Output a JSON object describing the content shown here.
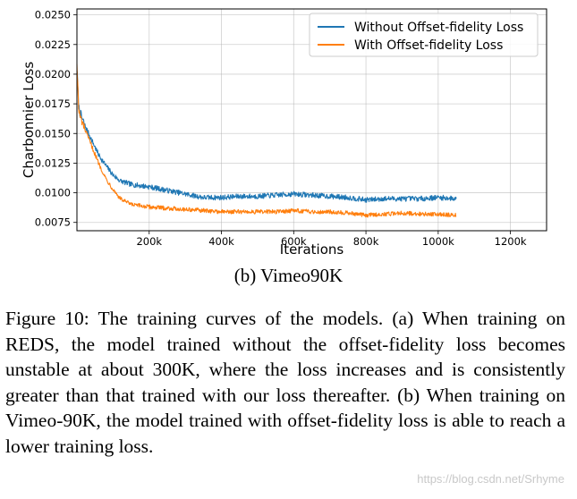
{
  "chart_data": {
    "type": "line",
    "title": "",
    "xlabel": "Iterations",
    "ylabel": "Charbonnier Loss",
    "xlim": [
      0,
      1300000
    ],
    "ylim": [
      0.0068,
      0.0255
    ],
    "xticks": [
      200000,
      400000,
      600000,
      800000,
      1000000,
      1200000
    ],
    "xtick_labels": [
      "200k",
      "400k",
      "600k",
      "800k",
      "1000k",
      "1200k"
    ],
    "yticks": [
      0.0075,
      0.01,
      0.0125,
      0.015,
      0.0175,
      0.02,
      0.0225,
      0.025
    ],
    "ytick_labels": [
      "0.0075",
      "0.0100",
      "0.0125",
      "0.0150",
      "0.0175",
      "0.0200",
      "0.0225",
      "0.0250"
    ],
    "legend_position": "top-right",
    "grid": true,
    "series": [
      {
        "name": "Without Offset-fidelity Loss",
        "color": "#1f77b4",
        "noise": 0.00022,
        "x": [
          0,
          5000,
          10000,
          20000,
          40000,
          60000,
          80000,
          100000,
          120000,
          150000,
          200000,
          250000,
          300000,
          350000,
          400000,
          450000,
          500000,
          550000,
          600000,
          650000,
          700000,
          750000,
          800000,
          850000,
          900000,
          950000,
          1000000,
          1050000
        ],
        "y": [
          0.0205,
          0.0172,
          0.0166,
          0.0158,
          0.0145,
          0.0132,
          0.0123,
          0.0115,
          0.011,
          0.0107,
          0.0105,
          0.0102,
          0.0099,
          0.0096,
          0.0096,
          0.0097,
          0.0097,
          0.0098,
          0.0099,
          0.0098,
          0.0097,
          0.0096,
          0.0094,
          0.0095,
          0.0095,
          0.0095,
          0.0096,
          0.0095
        ]
      },
      {
        "name": "With Offset-fidelity Loss",
        "color": "#ff7f0e",
        "noise": 0.00018,
        "x": [
          0,
          5000,
          10000,
          20000,
          40000,
          60000,
          80000,
          100000,
          120000,
          150000,
          200000,
          250000,
          300000,
          350000,
          400000,
          450000,
          500000,
          550000,
          600000,
          650000,
          700000,
          750000,
          800000,
          850000,
          900000,
          950000,
          1000000,
          1050000
        ],
        "y": [
          0.021,
          0.0169,
          0.0163,
          0.0155,
          0.014,
          0.0125,
          0.0112,
          0.0103,
          0.0095,
          0.009,
          0.0088,
          0.0087,
          0.0086,
          0.0085,
          0.0084,
          0.0084,
          0.0084,
          0.0084,
          0.0085,
          0.0084,
          0.0084,
          0.0083,
          0.0081,
          0.0082,
          0.0083,
          0.0082,
          0.0082,
          0.0081
        ]
      }
    ]
  },
  "subcaption": "(b) Vimeo90K",
  "caption": "Figure 10: The training curves of the models. (a) When training on REDS, the model trained without the offset-fidelity loss becomes unstable at about 300K, where the loss increases and is consistently greater than that trained with our loss thereafter. (b) When training on Vimeo-90K, the model trained with offset-fidelity loss is able to reach a lower training loss.",
  "watermark": "https://blog.csdn.net/Srhyme"
}
